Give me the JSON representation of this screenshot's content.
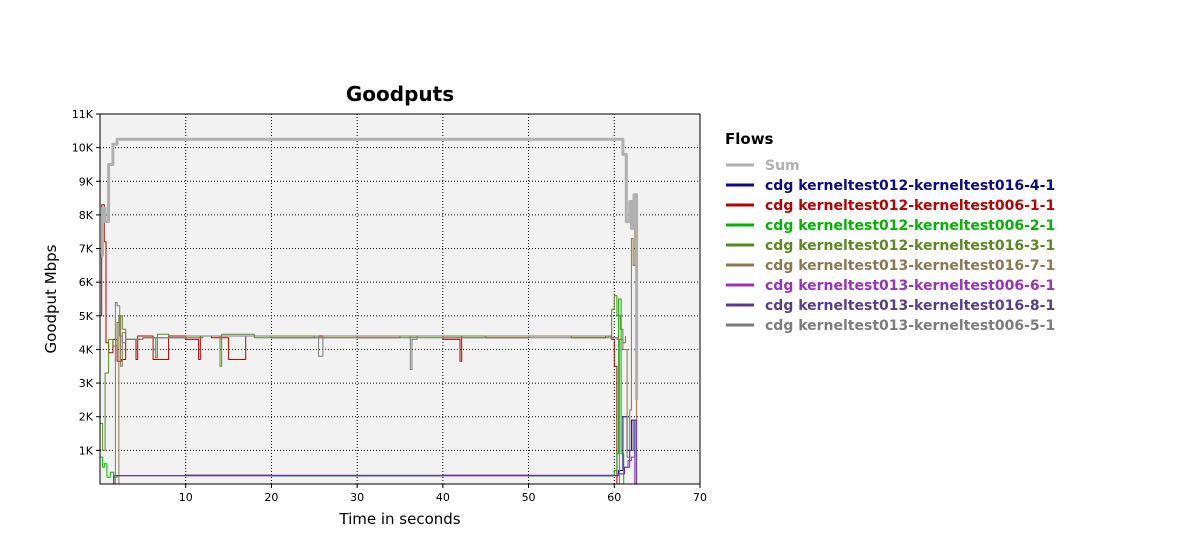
{
  "chart_data": {
    "type": "line",
    "title": "Goodputs",
    "xlabel": "Time in seconds",
    "ylabel": "Goodput Mbps",
    "xlim": [
      0,
      70
    ],
    "ylim": [
      0,
      11000
    ],
    "x_ticks": [
      10,
      20,
      30,
      40,
      50,
      60,
      70
    ],
    "x_tick_labels": [
      "10",
      "20",
      "30",
      "40",
      "50",
      "60",
      "70"
    ],
    "y_ticks": [
      1000,
      2000,
      3000,
      4000,
      5000,
      6000,
      7000,
      8000,
      9000,
      10000,
      11000
    ],
    "y_tick_labels": [
      "1K",
      "2K",
      "3K",
      "4K",
      "5K",
      "6K",
      "7K",
      "8K",
      "9K",
      "10K",
      "11K"
    ],
    "grid": true,
    "legend": {
      "title": "Flows",
      "placement": "right"
    },
    "series": [
      {
        "name": "Sum",
        "color": "#b0b0b0",
        "width": 3,
        "x": [
          0,
          0.3,
          0.6,
          1.0,
          1.5,
          2.0,
          3,
          10,
          20,
          30,
          40,
          50,
          59.5,
          60.3,
          61.0,
          61.4,
          61.8,
          62.0,
          62.3,
          62.6
        ],
        "y": [
          6800,
          8200,
          7800,
          9500,
          10100,
          10250,
          10250,
          10250,
          10250,
          10250,
          10250,
          10250,
          10250,
          10250,
          9800,
          7800,
          8400,
          7600,
          8600,
          2500
        ]
      },
      {
        "name": "cdg kerneltest012-kerneltest016-4-1",
        "color": "#0a0a8c",
        "width": 1,
        "x": [
          0,
          1.5,
          1.6,
          10,
          20,
          30,
          40,
          50,
          59.8,
          60.5,
          61.0,
          61.5,
          62.0,
          62.4
        ],
        "y": [
          0,
          0,
          250,
          260,
          240,
          250,
          260,
          240,
          250,
          400,
          2000,
          1000,
          1900,
          0
        ]
      },
      {
        "name": "cdg kerneltest012-kerneltest006-1-1",
        "color": "#b80000",
        "width": 1,
        "x": [
          0,
          0.2,
          0.5,
          0.7,
          1.0,
          1.5,
          2.0,
          2.5,
          3.0,
          4.2,
          4.4,
          6.0,
          6.2,
          8.0,
          10.0,
          11.5,
          11.7,
          13,
          15,
          17,
          20,
          25,
          30,
          35,
          40,
          42,
          42.2,
          45,
          50,
          55,
          59.0,
          59.7,
          60.0,
          60.3
        ],
        "y": [
          5000,
          8300,
          7200,
          4200,
          3900,
          4300,
          3650,
          3700,
          4300,
          3700,
          4400,
          4400,
          3700,
          4400,
          4300,
          3700,
          4400,
          4350,
          3700,
          4400,
          4350,
          4400,
          4350,
          4400,
          4300,
          3650,
          4400,
          4350,
          4400,
          4350,
          4400,
          4300,
          3500,
          0
        ]
      },
      {
        "name": "cdg kerneltest012-kerneltest006-2-1",
        "color": "#00b400",
        "width": 1,
        "x": [
          0,
          0.3,
          0.5,
          0.8,
          1.2,
          1.6,
          2.0,
          10,
          20,
          30,
          40,
          50,
          59.6,
          60.0,
          60.3,
          60.5,
          60.8,
          61.1
        ],
        "y": [
          800,
          500,
          600,
          200,
          350,
          200,
          250,
          260,
          240,
          260,
          250,
          240,
          260,
          400,
          900,
          5500,
          900,
          0
        ]
      },
      {
        "name": "cdg kerneltest012-kerneltest016-3-1",
        "color": "#5a8a1e",
        "width": 1,
        "x": [
          0,
          0.3,
          0.6,
          1.0,
          1.5,
          2.0,
          2.3,
          2.6,
          3.0,
          5,
          6.5,
          6.7,
          8,
          12,
          14,
          14.2,
          18,
          20,
          25,
          30,
          35,
          40,
          45,
          50,
          55,
          59.3,
          59.7,
          60.0,
          60.3,
          60.7,
          61.0,
          61.3
        ],
        "y": [
          1800,
          1000,
          3300,
          4300,
          4100,
          4800,
          5000,
          4600,
          4300,
          4350,
          3750,
          4450,
          4350,
          4400,
          3500,
          4450,
          4350,
          4400,
          4350,
          4400,
          4350,
          4400,
          4350,
          4400,
          4350,
          4400,
          5200,
          5600,
          5000,
          4600,
          4200,
          4400
        ]
      },
      {
        "name": "cdg kerneltest013-kerneltest016-7-1",
        "color": "#8c7850",
        "width": 1,
        "x": [
          0,
          1.5,
          2.2,
          2.4,
          2.6,
          3.0,
          5,
          10,
          20,
          30,
          40,
          50,
          59.5,
          60.5,
          61.0,
          61.5,
          61.8,
          62.0,
          62.2,
          62.4,
          62.6
        ],
        "y": [
          0,
          0,
          5000,
          3500,
          4500,
          4300,
          4350,
          4400,
          4350,
          4400,
          4350,
          4400,
          4350,
          4300,
          4000,
          800,
          2200,
          7300,
          6500,
          7600,
          0
        ]
      },
      {
        "name": "cdg kerneltest013-kerneltest006-6-1",
        "color": "#9a30c0",
        "width": 1,
        "x": [
          0,
          1.5,
          1.6,
          10,
          20,
          30,
          40,
          50,
          59.8,
          60.3,
          61.2,
          61.6,
          62.0,
          62.4
        ],
        "y": [
          0,
          0,
          250,
          240,
          260,
          250,
          240,
          260,
          250,
          300,
          500,
          700,
          800,
          0
        ]
      },
      {
        "name": "cdg kerneltest013-kerneltest016-8-1",
        "color": "#5a3c8c",
        "width": 1,
        "x": [
          0,
          1.5,
          1.6,
          10,
          20,
          30,
          40,
          50,
          59.8,
          60.5,
          61.2,
          61.8,
          62.2,
          62.6
        ],
        "y": [
          0,
          0,
          250,
          260,
          250,
          240,
          260,
          250,
          250,
          300,
          500,
          1000,
          1900,
          0
        ]
      },
      {
        "name": "cdg kerneltest013-kerneltest006-5-1",
        "color": "#7c7c7c",
        "width": 1,
        "x": [
          0,
          1.5,
          1.8,
          2.0,
          2.3,
          2.6,
          3.0,
          5,
          10,
          20,
          25,
          25.5,
          26,
          30,
          35,
          36.2,
          36.4,
          37,
          40,
          45,
          50,
          55,
          59.5,
          60.3,
          60.6
        ],
        "y": [
          0,
          0,
          5400,
          5300,
          4400,
          4200,
          4300,
          4350,
          4400,
          4350,
          4400,
          3800,
          4400,
          4350,
          4400,
          3400,
          4300,
          4400,
          4350,
          4400,
          4350,
          4400,
          4350,
          4300,
          0
        ]
      }
    ]
  }
}
